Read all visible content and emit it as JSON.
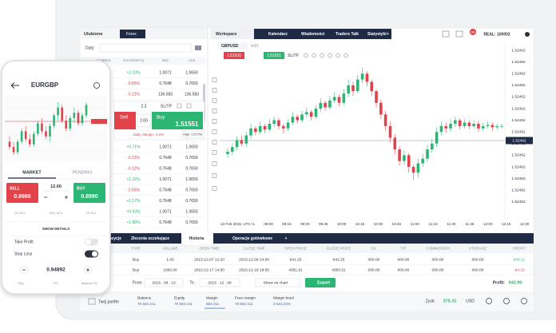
{
  "platform": {
    "watchlist": {
      "tabs": [
        "Ulubione",
        "Forex"
      ],
      "filter_label": "Daty:",
      "headers": [
        "SYMBOL",
        "CHANGE(%)",
        "BID",
        "ASK"
      ],
      "rows_top": [
        {
          "change": "+1.03%",
          "bid": "1.0071",
          "ask": "1.0650"
        },
        {
          "change": "-0.85%",
          "bid": "0.7648",
          "ask": "0.7650"
        },
        {
          "change": "-0.22%",
          "bid": "136.583",
          "ask": "136.583"
        }
      ],
      "rows": [
        {
          "change": "+0.71%",
          "bid": "1.0071",
          "ask": "1.0650"
        },
        {
          "change": "-0.22%",
          "bid": "0.7648",
          "ask": "0.7650"
        },
        {
          "change": "-0.12%",
          "bid": "0.7648",
          "ask": "0.7650"
        },
        {
          "change": "+1.32%",
          "bid": "1.0071",
          "ask": "1.0650"
        },
        {
          "change": "-0.56%",
          "bid": "0.7648",
          "ask": "0.7650"
        },
        {
          "change": "+1.17%",
          "bid": "0.7648",
          "ask": "0.7650"
        },
        {
          "change": "+0.93%",
          "bid": "1.0071",
          "ask": "1.0650"
        },
        {
          "change": "+1.88%",
          "bid": "0.7648",
          "ask": "0.7650"
        }
      ]
    },
    "ticket": {
      "size": "2.3",
      "sltp": "SL/TP",
      "sell": "Sell",
      "volume": "2.00",
      "buy": "Buy",
      "buy_price": "1.51551",
      "daily_change": "Daily change: -1.6%",
      "high": "High: 1.51759"
    },
    "workspace_tabs": [
      "Workspace",
      "Kalendarz",
      "Wiadomości",
      "Traders Talk",
      "Statystyki",
      "+"
    ],
    "notifications": "54",
    "account": "REAL: 100002",
    "chart": {
      "symbol": "GBPUSD",
      "interval": "m15",
      "sell_price": "1.51530",
      "buy_price": "1.51551",
      "sltp": "SL/TP",
      "price_labels": [
        "1.52462",
        "1.52462",
        "1.52462",
        "1.52462",
        "1.52462",
        "1.52462",
        "1.52462",
        "1.52462",
        "1.52462",
        "1.52462",
        "1.52462",
        "1.52462",
        "1.52462",
        "1.52462"
      ],
      "current_price": "1.52462",
      "time_labels": [
        "13 Feb 2015, UTC+1",
        "09:00",
        "09:15",
        "09:30",
        "09:45",
        "10:00",
        "10:15",
        "10:30",
        "10:45",
        "11:00",
        "11:15",
        "11:30",
        "11:45",
        "12:00",
        "12:15",
        "12:30"
      ],
      "candles": [
        [
          26,
          31,
          23,
          28
        ],
        [
          28,
          35,
          25,
          32
        ],
        [
          32,
          41,
          29,
          38
        ],
        [
          38,
          42,
          33,
          35
        ],
        [
          35,
          45,
          32,
          42
        ],
        [
          42,
          52,
          39,
          48
        ],
        [
          48,
          50,
          42,
          45
        ],
        [
          45,
          54,
          43,
          50
        ],
        [
          50,
          52,
          44,
          47
        ],
        [
          47,
          56,
          45,
          52
        ],
        [
          52,
          58,
          49,
          55
        ],
        [
          55,
          57,
          47,
          50
        ],
        [
          50,
          52,
          44,
          48
        ],
        [
          48,
          56,
          46,
          53
        ],
        [
          53,
          62,
          51,
          58
        ],
        [
          58,
          60,
          52,
          55
        ],
        [
          55,
          63,
          53,
          60
        ],
        [
          60,
          66,
          57,
          62
        ],
        [
          62,
          64,
          55,
          58
        ],
        [
          58,
          68,
          56,
          65
        ],
        [
          65,
          74,
          62,
          70
        ],
        [
          70,
          72,
          63,
          66
        ],
        [
          66,
          76,
          64,
          72
        ],
        [
          72,
          79,
          70,
          75
        ],
        [
          75,
          77,
          67,
          70
        ],
        [
          70,
          82,
          68,
          78
        ],
        [
          78,
          90,
          75,
          85
        ],
        [
          85,
          88,
          76,
          80
        ],
        [
          80,
          94,
          78,
          90
        ],
        [
          90,
          100,
          87,
          95
        ],
        [
          95,
          97,
          84,
          88
        ],
        [
          88,
          90,
          76,
          80
        ],
        [
          80,
          82,
          66,
          70
        ],
        [
          70,
          73,
          56,
          60
        ],
        [
          60,
          63,
          46,
          50
        ],
        [
          50,
          54,
          36,
          40
        ],
        [
          40,
          43,
          26,
          30
        ],
        [
          30,
          33,
          16,
          20
        ],
        [
          20,
          29,
          17,
          25
        ],
        [
          25,
          27,
          10,
          15
        ],
        [
          15,
          17,
          4,
          10
        ],
        [
          10,
          22,
          6,
          18
        ],
        [
          18,
          26,
          15,
          22
        ],
        [
          22,
          34,
          19,
          30
        ],
        [
          30,
          39,
          27,
          35
        ],
        [
          35,
          49,
          32,
          45
        ],
        [
          45,
          54,
          42,
          50
        ],
        [
          50,
          53,
          44,
          48
        ],
        [
          48,
          56,
          45,
          52
        ],
        [
          52,
          58,
          49,
          55
        ],
        [
          55,
          57,
          47,
          50
        ],
        [
          50,
          56,
          48,
          53
        ],
        [
          53,
          55,
          47,
          50
        ],
        [
          50,
          55,
          48,
          52
        ],
        [
          52,
          54,
          45,
          48
        ],
        [
          48,
          53,
          46,
          50
        ],
        [
          50,
          54,
          48,
          51
        ],
        [
          51,
          53,
          46,
          49
        ],
        [
          49,
          52,
          47,
          50
        ],
        [
          50,
          52,
          48,
          50
        ]
      ]
    },
    "bottom": {
      "tabs": [
        "Pozycje",
        "Zlecenia oczekujące",
        "Historia",
        "Operacje gotówkowe",
        "+"
      ],
      "headers": [
        "TYPE",
        "VOLUME",
        "OPEN TIME",
        "CLOSE TIME",
        "OPEN PRICE",
        "CLOSE PRICE",
        "S/L",
        "T/P",
        "COMMISSION",
        "STORAGE",
        "PROFIT"
      ],
      "rows": [
        [
          "Buy",
          "1.00",
          "2015-12-07 12:20",
          "2015-12-09 24:00",
          "941.25",
          "942.25",
          "000.00",
          "000.00",
          "000.00",
          "000.00",
          "500.21"
        ],
        [
          "Buy",
          "1000.00",
          "2015-12-17 14:50",
          "2015-12-18 18:55",
          "4351.91",
          "4350.51",
          "000.00",
          "000.00",
          "000.00",
          "000.00",
          "-64.15"
        ]
      ],
      "filter": {
        "from_label": "From",
        "from": "2015 . 08 . 13",
        "to_label": "To",
        "to": "2015 . 12 . 08",
        "show": "Show on chart",
        "export": "Export"
      },
      "profit_label": "Profit:",
      "profit": "942.99"
    },
    "footer": {
      "wallet": "Twój portfel",
      "stats": [
        {
          "label": "Balance",
          "value": "78 563 211"
        },
        {
          "label": "Equity",
          "value": "78 563 211"
        },
        {
          "label": "Margin",
          "value": "563 211"
        },
        {
          "label": "Free margin",
          "value": "78 563 211"
        },
        {
          "label": "Margin level",
          "value": "3 531,23%"
        }
      ],
      "gain_label": "Zysk:",
      "gain": "375.31",
      "currency": "USD"
    }
  },
  "phone": {
    "symbol": "EURGBP",
    "candles": [
      [
        50,
        54,
        44,
        46
      ],
      [
        46,
        50,
        40,
        42
      ],
      [
        42,
        52,
        40,
        50
      ],
      [
        50,
        60,
        48,
        58
      ],
      [
        58,
        62,
        50,
        52
      ],
      [
        52,
        56,
        46,
        48
      ],
      [
        48,
        58,
        46,
        56
      ],
      [
        56,
        66,
        54,
        64
      ],
      [
        64,
        68,
        56,
        58
      ],
      [
        58,
        62,
        52,
        54
      ],
      [
        54,
        64,
        50,
        62
      ],
      [
        62,
        72,
        60,
        70
      ],
      [
        70,
        80,
        66,
        76
      ],
      [
        76,
        78,
        64,
        66
      ],
      [
        66,
        70,
        58,
        60
      ],
      [
        60,
        70,
        58,
        68
      ],
      [
        68,
        76,
        64,
        72
      ],
      [
        72,
        74,
        62,
        64
      ],
      [
        64,
        72,
        62,
        70
      ],
      [
        70,
        80,
        68,
        78
      ]
    ],
    "tabs": [
      "MARKET",
      "PENDING"
    ],
    "sell": "SELL",
    "sell_price": "0.8986",
    "volume": "12.00",
    "buy": "BUY",
    "buy_price": "0.8990",
    "stats": [
      "22.13 k",
      "3111.42 k",
      "79.76 k"
    ],
    "details": "SHOW DETAILS",
    "take_profit": "Take Profit",
    "stop_loss": "Stop Loss",
    "price": "0.94892",
    "footer_labels": [
      "Pips",
      "P/L",
      "Balance P/L"
    ]
  }
}
